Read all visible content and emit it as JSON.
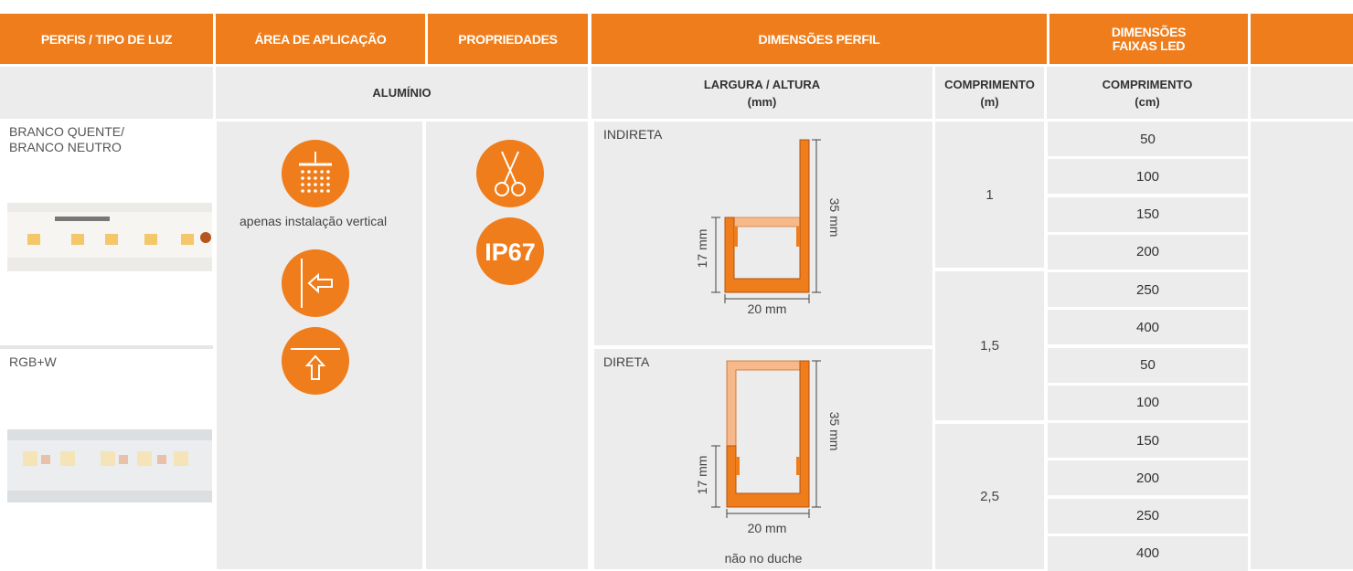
{
  "header": {
    "columns": [
      "PERFIS / TIPO DE LUZ",
      "ÁREA DE APLICAÇÃO",
      "PROPRIEDADES",
      "DIMENSÕES PERFIL"
    ],
    "strip_column": [
      "DIMENSÕES",
      "FAIXAS LED"
    ]
  },
  "subheader": {
    "material": "ALUMÍNIO",
    "width_height": [
      "LARGURA / ALTURA",
      "(mm)"
    ],
    "length": [
      "COMPRIMENTO",
      "(m)"
    ],
    "strip_length": [
      "COMPRIMENTO",
      "(cm)"
    ]
  },
  "light_types": [
    {
      "lines": [
        "BRANCO QUENTE/",
        "BRANCO NEUTRO"
      ]
    },
    {
      "lines": [
        "RGB+W"
      ]
    }
  ],
  "application": {
    "note": "apenas instalação vertical"
  },
  "properties": {
    "ip_rating": "IP67"
  },
  "profiles": [
    {
      "label": "INDIRETA",
      "height": "35 mm",
      "inner_height": "17 mm",
      "width": "20 mm"
    },
    {
      "label": "DIRETA",
      "height": "35 mm",
      "inner_height": "17 mm",
      "width": "20 mm",
      "note": "não no duche"
    }
  ],
  "profile_lengths": [
    "1",
    "1,5",
    "2,5"
  ],
  "strip_lengths": [
    50,
    100,
    150,
    200,
    250,
    400,
    50,
    100,
    150,
    200,
    250,
    400
  ]
}
